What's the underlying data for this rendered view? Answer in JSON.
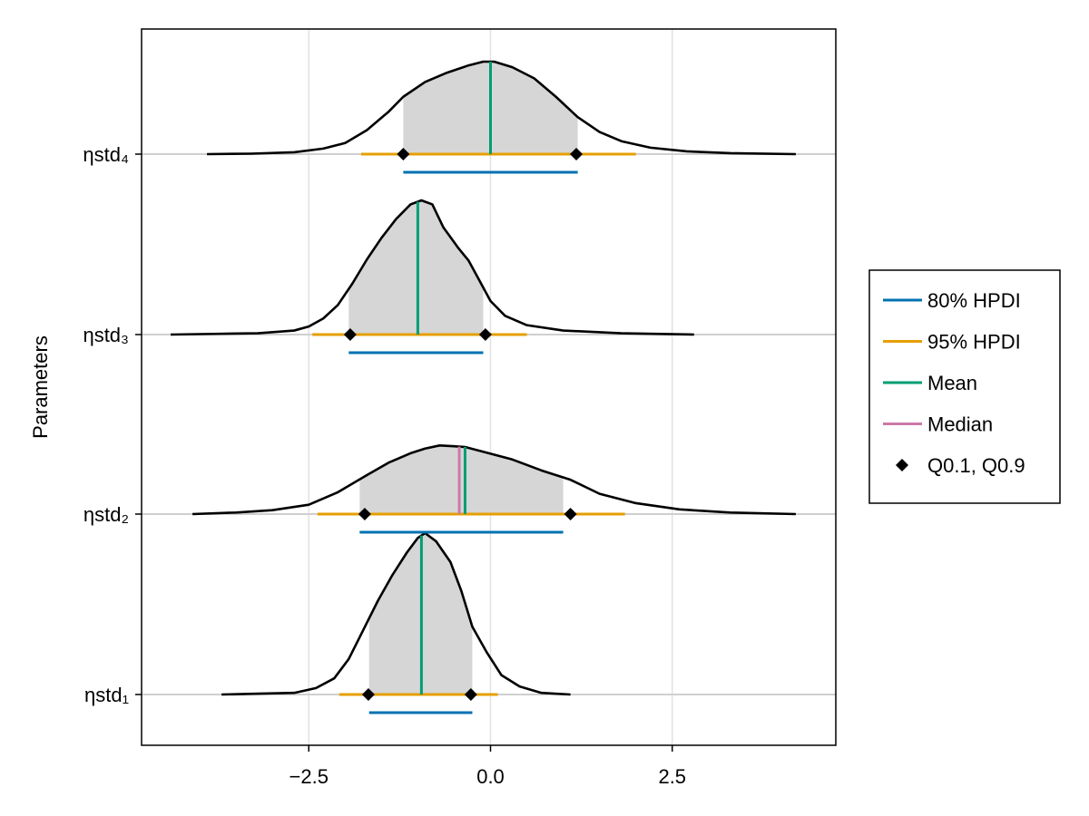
{
  "chart_data": {
    "type": "density",
    "ylabel": "Parameters",
    "xlim": [
      -4.8,
      4.75
    ],
    "x_ticks": [
      -2.5,
      0.0,
      2.5
    ],
    "x_tick_labels": [
      "−2.5",
      "0.0",
      "2.5"
    ],
    "grid": true,
    "legend_position": "right",
    "legend": [
      {
        "label": "80% HPDI",
        "color": "#0072b2",
        "kind": "line"
      },
      {
        "label": "95% HPDI",
        "color": "#e69f00",
        "kind": "line"
      },
      {
        "label": "Mean",
        "color": "#009e73",
        "kind": "line"
      },
      {
        "label": "Median",
        "color": "#cc79a7",
        "kind": "line"
      },
      {
        "label": "Q0.1, Q0.9",
        "color": "#000000",
        "kind": "marker"
      }
    ],
    "params": [
      {
        "name": "ηstd₄",
        "density": [
          [
            -3.9,
            0
          ],
          [
            -3.3,
            0.005
          ],
          [
            -2.7,
            0.02
          ],
          [
            -2.3,
            0.06
          ],
          [
            -2.0,
            0.12
          ],
          [
            -1.7,
            0.26
          ],
          [
            -1.4,
            0.46
          ],
          [
            -1.2,
            0.62
          ],
          [
            -0.9,
            0.78
          ],
          [
            -0.6,
            0.88
          ],
          [
            -0.3,
            0.96
          ],
          [
            -0.1,
            1.0
          ],
          [
            0.05,
            1.0
          ],
          [
            0.3,
            0.94
          ],
          [
            0.6,
            0.82
          ],
          [
            0.9,
            0.62
          ],
          [
            1.2,
            0.4
          ],
          [
            1.5,
            0.24
          ],
          [
            1.8,
            0.14
          ],
          [
            2.2,
            0.07
          ],
          [
            2.7,
            0.03
          ],
          [
            3.3,
            0.01
          ],
          [
            4.2,
            0
          ]
        ],
        "mean": 0.0,
        "median": 0.0,
        "q10": -1.2,
        "q90": 1.18,
        "hpdi80": [
          -1.2,
          1.2
        ],
        "hpdi95": [
          -1.78,
          2.0
        ]
      },
      {
        "name": "ηstd₃",
        "density": [
          [
            -4.4,
            0
          ],
          [
            -3.8,
            0.005
          ],
          [
            -3.2,
            0.01
          ],
          [
            -2.7,
            0.03
          ],
          [
            -2.5,
            0.06
          ],
          [
            -2.3,
            0.12
          ],
          [
            -2.1,
            0.22
          ],
          [
            -1.9,
            0.38
          ],
          [
            -1.7,
            0.56
          ],
          [
            -1.5,
            0.72
          ],
          [
            -1.3,
            0.86
          ],
          [
            -1.1,
            0.97
          ],
          [
            -0.95,
            1.0
          ],
          [
            -0.8,
            0.97
          ],
          [
            -0.65,
            0.8
          ],
          [
            -0.45,
            0.65
          ],
          [
            -0.3,
            0.55
          ],
          [
            -0.15,
            0.4
          ],
          [
            0.0,
            0.25
          ],
          [
            0.2,
            0.14
          ],
          [
            0.5,
            0.07
          ],
          [
            1.0,
            0.03
          ],
          [
            1.8,
            0.01
          ],
          [
            2.8,
            0
          ]
        ],
        "mean": -1.0,
        "median": -1.0,
        "q10": -1.93,
        "q90": -0.07,
        "hpdi80": [
          -1.95,
          -0.1
        ],
        "hpdi95": [
          -2.45,
          0.5
        ]
      },
      {
        "name": "ηstd₂",
        "density": [
          [
            -4.1,
            0
          ],
          [
            -3.5,
            0.02
          ],
          [
            -3.0,
            0.05
          ],
          [
            -2.5,
            0.12
          ],
          [
            -2.1,
            0.28
          ],
          [
            -1.7,
            0.5
          ],
          [
            -1.4,
            0.66
          ],
          [
            -1.1,
            0.78
          ],
          [
            -0.9,
            0.84
          ],
          [
            -0.7,
            0.88
          ],
          [
            -0.5,
            0.87
          ],
          [
            -0.35,
            0.86
          ],
          [
            -0.1,
            0.8
          ],
          [
            0.3,
            0.7
          ],
          [
            0.7,
            0.56
          ],
          [
            1.1,
            0.44
          ],
          [
            1.5,
            0.26
          ],
          [
            2.0,
            0.14
          ],
          [
            2.6,
            0.06
          ],
          [
            3.3,
            0.02
          ],
          [
            4.2,
            0
          ]
        ],
        "mean": -0.35,
        "median": -0.43,
        "q10": -1.73,
        "q90": 1.1,
        "hpdi80": [
          -1.8,
          1.0
        ],
        "hpdi95": [
          -2.38,
          1.85
        ]
      },
      {
        "name": "ηstd₁",
        "density": [
          [
            -3.7,
            0
          ],
          [
            -3.2,
            0.005
          ],
          [
            -2.7,
            0.01
          ],
          [
            -2.4,
            0.04
          ],
          [
            -2.15,
            0.1
          ],
          [
            -1.95,
            0.22
          ],
          [
            -1.75,
            0.4
          ],
          [
            -1.55,
            0.58
          ],
          [
            -1.35,
            0.74
          ],
          [
            -1.15,
            0.88
          ],
          [
            -1.0,
            0.97
          ],
          [
            -0.9,
            1.0
          ],
          [
            -0.75,
            0.95
          ],
          [
            -0.55,
            0.82
          ],
          [
            -0.4,
            0.64
          ],
          [
            -0.25,
            0.42
          ],
          [
            -0.05,
            0.26
          ],
          [
            0.15,
            0.12
          ],
          [
            0.4,
            0.05
          ],
          [
            0.7,
            0.01
          ],
          [
            1.1,
            0
          ]
        ],
        "mean": -0.95,
        "median": -0.95,
        "q10": -1.68,
        "q90": -0.27,
        "hpdi80": [
          -1.67,
          -0.25
        ],
        "hpdi95": [
          -2.08,
          0.1
        ]
      }
    ]
  }
}
